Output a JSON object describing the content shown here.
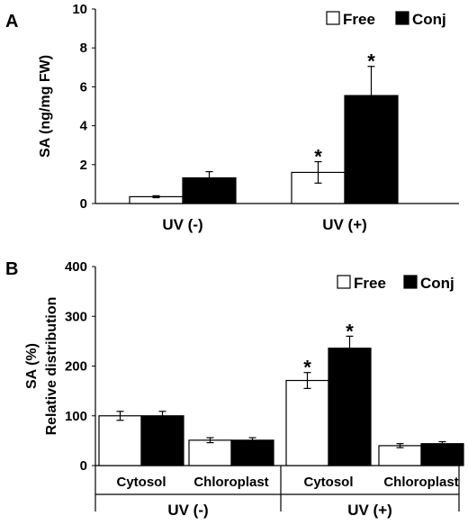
{
  "chart_data": [
    {
      "panel_label": "A",
      "type": "bar",
      "ylabel": "SA  (ng/mg FW)",
      "ylim": [
        0,
        10
      ],
      "yticks": [
        0,
        2,
        4,
        6,
        8,
        10
      ],
      "categories": [
        "UV (-)",
        "UV (+)"
      ],
      "series": [
        {
          "name": "Free",
          "color": "#ffffff",
          "values": [
            0.35,
            1.6
          ],
          "errors": [
            0.05,
            0.55
          ]
        },
        {
          "name": "Conj",
          "color": "#000000",
          "values": [
            1.32,
            5.55
          ],
          "errors": [
            0.32,
            1.5
          ]
        }
      ],
      "annotations": [
        {
          "category": "UV (+)",
          "series": "Free",
          "text": "*"
        },
        {
          "category": "UV (+)",
          "series": "Conj",
          "text": "*"
        }
      ],
      "legend": "top-right",
      "grid": false
    },
    {
      "panel_label": "B",
      "type": "bar",
      "ylabel_lines": [
        "SA  (%)",
        "Relative distribution"
      ],
      "ylim": [
        0,
        400
      ],
      "yticks": [
        0,
        100,
        200,
        300,
        400
      ],
      "groups": [
        "UV (-)",
        "UV (+)"
      ],
      "categories": [
        "Cytosol",
        "Chloroplast",
        "Cytosol",
        "Chloroplast"
      ],
      "category_groups": [
        0,
        0,
        1,
        1
      ],
      "series": [
        {
          "name": "Free",
          "color": "#ffffff",
          "values": [
            100,
            51,
            171,
            40
          ],
          "errors": [
            9,
            5,
            16,
            4
          ]
        },
        {
          "name": "Conj",
          "color": "#000000",
          "values": [
            100,
            51,
            236,
            44
          ],
          "errors": [
            9,
            5,
            24,
            4
          ]
        }
      ],
      "annotations": [
        {
          "category_index": 2,
          "series": "Free",
          "text": "*"
        },
        {
          "category_index": 2,
          "series": "Conj",
          "text": "*"
        }
      ],
      "legend": "top-right",
      "grid": false
    }
  ]
}
